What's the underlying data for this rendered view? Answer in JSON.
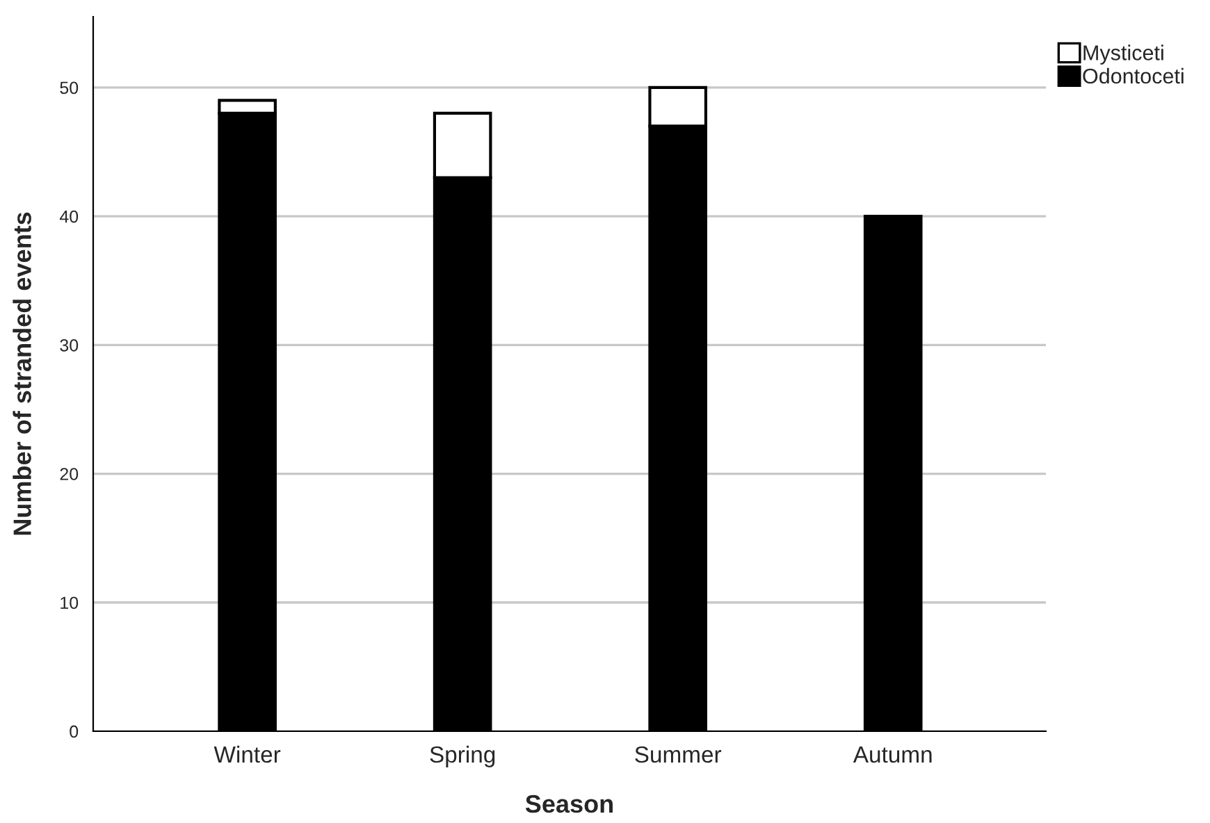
{
  "chart_data": {
    "type": "bar",
    "stacked": true,
    "xlabel": "Season",
    "ylabel": "Number of stranded events",
    "categories": [
      "Winter",
      "Spring",
      "Summer",
      "Autumn"
    ],
    "series": [
      {
        "name": "Odontoceti",
        "color": "#000000",
        "values": [
          48,
          43,
          47,
          40
        ]
      },
      {
        "name": "Mysticeti",
        "color": "#ffffff",
        "values": [
          1,
          5,
          3,
          null
        ]
      }
    ],
    "ylim": [
      0,
      55.5
    ],
    "yticks": [
      0,
      10,
      20,
      30,
      40,
      50
    ],
    "grid": "y",
    "legend": "top right"
  }
}
